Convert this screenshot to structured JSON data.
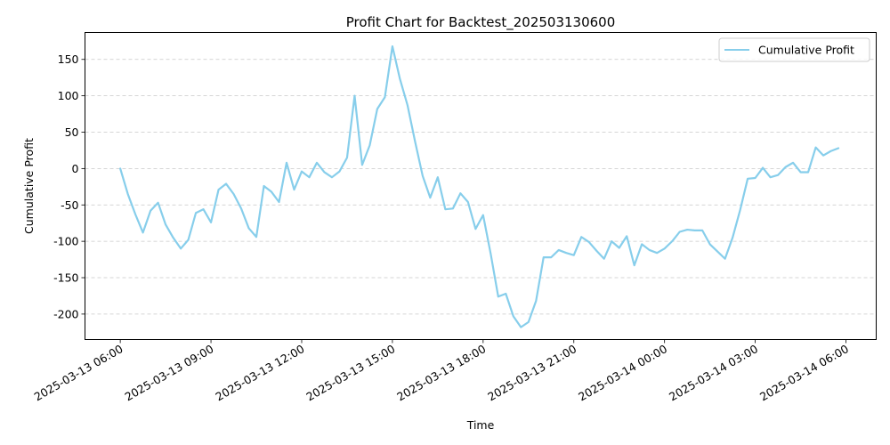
{
  "chart_data": {
    "type": "line",
    "title": "Profit Chart for Backtest_202503130600",
    "xlabel": "Time",
    "ylabel": "Cumulative Profit",
    "x_tick_labels": [
      "2025-03-13 06:00",
      "2025-03-13 09:00",
      "2025-03-13 12:00",
      "2025-03-13 15:00",
      "2025-03-13 18:00",
      "2025-03-13 21:00",
      "2025-03-14 00:00",
      "2025-03-14 03:00",
      "2025-03-14 06:00"
    ],
    "y_ticks": [
      -200,
      -150,
      -100,
      -50,
      0,
      50,
      100,
      150
    ],
    "xlim": [
      "2025-03-13 04:50",
      "2025-03-14 07:00"
    ],
    "ylim": [
      -235,
      187
    ],
    "grid": "y-dashed",
    "legend_position": "top-right",
    "line_color": "#87CEEB",
    "series": [
      {
        "name": "Cumulative Profit",
        "x": [
          "2025-03-13 06:00",
          "2025-03-13 06:15",
          "2025-03-13 06:30",
          "2025-03-13 06:45",
          "2025-03-13 07:00",
          "2025-03-13 07:15",
          "2025-03-13 07:30",
          "2025-03-13 07:45",
          "2025-03-13 08:00",
          "2025-03-13 08:15",
          "2025-03-13 08:30",
          "2025-03-13 08:45",
          "2025-03-13 09:00",
          "2025-03-13 09:15",
          "2025-03-13 09:30",
          "2025-03-13 09:45",
          "2025-03-13 10:00",
          "2025-03-13 10:15",
          "2025-03-13 10:30",
          "2025-03-13 10:45",
          "2025-03-13 11:00",
          "2025-03-13 11:15",
          "2025-03-13 11:30",
          "2025-03-13 11:45",
          "2025-03-13 12:00",
          "2025-03-13 12:15",
          "2025-03-13 12:30",
          "2025-03-13 12:45",
          "2025-03-13 13:00",
          "2025-03-13 13:15",
          "2025-03-13 13:30",
          "2025-03-13 13:45",
          "2025-03-13 14:00",
          "2025-03-13 14:15",
          "2025-03-13 14:30",
          "2025-03-13 14:45",
          "2025-03-13 15:00",
          "2025-03-13 15:15",
          "2025-03-13 15:30",
          "2025-03-13 15:45",
          "2025-03-13 16:00",
          "2025-03-13 16:15",
          "2025-03-13 16:30",
          "2025-03-13 16:45",
          "2025-03-13 17:00",
          "2025-03-13 17:15",
          "2025-03-13 17:30",
          "2025-03-13 17:45",
          "2025-03-13 18:00",
          "2025-03-13 18:15",
          "2025-03-13 18:30",
          "2025-03-13 18:45",
          "2025-03-13 19:00",
          "2025-03-13 19:15",
          "2025-03-13 19:30",
          "2025-03-13 19:45",
          "2025-03-13 20:00",
          "2025-03-13 20:15",
          "2025-03-13 20:30",
          "2025-03-13 20:45",
          "2025-03-13 21:00",
          "2025-03-13 21:15",
          "2025-03-13 21:30",
          "2025-03-13 21:45",
          "2025-03-13 22:00",
          "2025-03-13 22:15",
          "2025-03-13 22:30",
          "2025-03-13 22:45",
          "2025-03-13 23:00",
          "2025-03-13 23:15",
          "2025-03-13 23:30",
          "2025-03-13 23:45",
          "2025-03-14 00:00",
          "2025-03-14 00:15",
          "2025-03-14 00:30",
          "2025-03-14 00:45",
          "2025-03-14 01:00",
          "2025-03-14 01:15",
          "2025-03-14 01:30",
          "2025-03-14 01:45",
          "2025-03-14 02:00",
          "2025-03-14 02:15",
          "2025-03-14 02:30",
          "2025-03-14 02:45",
          "2025-03-14 03:00",
          "2025-03-14 03:15",
          "2025-03-14 03:30",
          "2025-03-14 03:45",
          "2025-03-14 04:00",
          "2025-03-14 04:15",
          "2025-03-14 04:30",
          "2025-03-14 04:45",
          "2025-03-14 05:00",
          "2025-03-14 05:15",
          "2025-03-14 05:30",
          "2025-03-14 05:45"
        ],
        "values": [
          0,
          -35,
          -63,
          -88,
          -58,
          -47,
          -77,
          -95,
          -110,
          -98,
          -61,
          -56,
          -74,
          -29,
          -21,
          -35,
          -55,
          -82,
          -94,
          -24,
          -32,
          -46,
          8,
          -29,
          -4,
          -12,
          8,
          -5,
          -12,
          -4,
          15,
          100,
          5,
          32,
          82,
          98,
          168,
          123,
          87,
          37,
          -10,
          -40,
          -12,
          -56,
          -55,
          -34,
          -46,
          -83,
          -64,
          -117,
          -176,
          -172,
          -203,
          -218,
          -211,
          -182,
          -122,
          -122,
          -112,
          -116,
          -119,
          -94,
          -101,
          -113,
          -124,
          -100,
          -109,
          -93,
          -133,
          -104,
          -112,
          -116,
          -110,
          -100,
          -87,
          -84,
          -85,
          -85,
          -104,
          -114,
          -124,
          -95,
          -57,
          -14,
          -13,
          1,
          -12,
          -9,
          2,
          8,
          -5,
          -5,
          29,
          18,
          24,
          28
        ]
      }
    ]
  }
}
